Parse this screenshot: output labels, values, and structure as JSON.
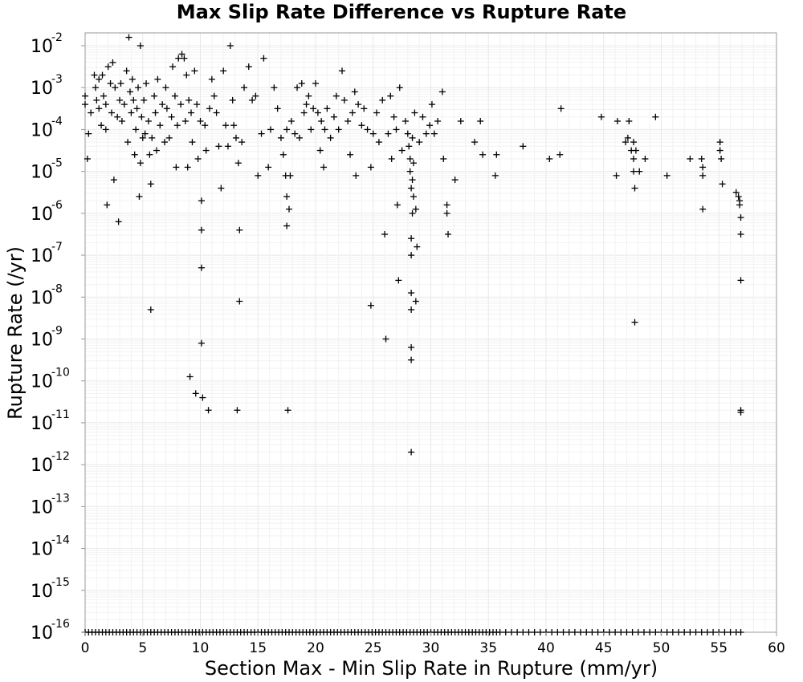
{
  "chart_data": {
    "type": "scatter",
    "title": "Max Slip Rate Difference vs Rupture Rate",
    "xlabel": "Section Max - Min Slip Rate in Rupture (mm/yr)",
    "ylabel": "Rupture Rate (/yr)",
    "xlim": [
      0,
      60
    ],
    "ylim_log10": [
      -16,
      -1.7
    ],
    "y_scale": "log",
    "grid": true,
    "legend": "none",
    "x_ticks": [
      "0",
      "5",
      "10",
      "15",
      "20",
      "25",
      "30",
      "35",
      "40",
      "45",
      "50",
      "55",
      "60"
    ],
    "y_ticks": [
      {
        "base": "10",
        "exp": "-2"
      },
      {
        "base": "10",
        "exp": "-3"
      },
      {
        "base": "10",
        "exp": "-4"
      },
      {
        "base": "10",
        "exp": "-5"
      },
      {
        "base": "10",
        "exp": "-6"
      },
      {
        "base": "10",
        "exp": "-7"
      },
      {
        "base": "10",
        "exp": "-8"
      },
      {
        "base": "10",
        "exp": "-9"
      },
      {
        "base": "10",
        "exp": "-10"
      },
      {
        "base": "10",
        "exp": "-11"
      },
      {
        "base": "10",
        "exp": "-12"
      },
      {
        "base": "10",
        "exp": "-13"
      },
      {
        "base": "10",
        "exp": "-14"
      },
      {
        "base": "10",
        "exp": "-15"
      },
      {
        "base": "10",
        "exp": "-16"
      }
    ],
    "marker": "plus",
    "point_color": "#000000",
    "points": [
      [
        0.0,
        -3.2
      ],
      [
        0.0,
        -3.4
      ],
      [
        0.2,
        -4.7
      ],
      [
        0.3,
        -4.1
      ],
      [
        0.5,
        -3.6
      ],
      [
        0.8,
        -2.7
      ],
      [
        0.9,
        -3.0
      ],
      [
        1.0,
        -3.3
      ],
      [
        1.2,
        -2.8
      ],
      [
        1.2,
        -3.5
      ],
      [
        1.4,
        -3.9
      ],
      [
        1.5,
        -2.7
      ],
      [
        1.6,
        -3.2
      ],
      [
        1.8,
        -4.0
      ],
      [
        1.8,
        -3.4
      ],
      [
        1.9,
        -5.8
      ],
      [
        2.0,
        -2.5
      ],
      [
        2.2,
        -2.9
      ],
      [
        2.3,
        -3.6
      ],
      [
        2.4,
        -2.4
      ],
      [
        2.5,
        -5.2
      ],
      [
        2.6,
        -3.0
      ],
      [
        2.8,
        -3.7
      ],
      [
        2.9,
        -6.2
      ],
      [
        3.0,
        -3.3
      ],
      [
        3.1,
        -2.9
      ],
      [
        3.2,
        -3.8
      ],
      [
        3.4,
        -3.4
      ],
      [
        3.6,
        -2.6
      ],
      [
        3.7,
        -4.3
      ],
      [
        3.8,
        -1.8
      ],
      [
        3.9,
        -3.1
      ],
      [
        4.0,
        -3.6
      ],
      [
        4.1,
        -2.8
      ],
      [
        4.2,
        -3.3
      ],
      [
        4.3,
        -4.6
      ],
      [
        4.4,
        -4.0
      ],
      [
        4.5,
        -3.5
      ],
      [
        4.6,
        -3.0
      ],
      [
        4.7,
        -5.6
      ],
      [
        4.8,
        -4.8
      ],
      [
        4.8,
        -2.0
      ],
      [
        4.9,
        -3.7
      ],
      [
        5.0,
        -4.2
      ],
      [
        5.1,
        -3.3
      ],
      [
        5.2,
        -4.1
      ],
      [
        5.3,
        -2.9
      ],
      [
        5.5,
        -3.8
      ],
      [
        5.6,
        -4.6
      ],
      [
        5.7,
        -5.3
      ],
      [
        5.7,
        -8.3
      ],
      [
        5.8,
        -4.2
      ],
      [
        6.0,
        -3.2
      ],
      [
        6.1,
        -3.6
      ],
      [
        6.2,
        -4.5
      ],
      [
        6.3,
        -2.8
      ],
      [
        6.5,
        -3.9
      ],
      [
        6.7,
        -3.4
      ],
      [
        6.9,
        -4.3
      ],
      [
        7.0,
        -3.0
      ],
      [
        7.1,
        -3.5
      ],
      [
        7.3,
        -4.2
      ],
      [
        7.5,
        -3.7
      ],
      [
        7.6,
        -2.5
      ],
      [
        7.8,
        -3.2
      ],
      [
        7.9,
        -4.9
      ],
      [
        8.0,
        -3.9
      ],
      [
        8.1,
        -2.3
      ],
      [
        8.3,
        -3.4
      ],
      [
        8.4,
        -2.2
      ],
      [
        8.6,
        -2.3
      ],
      [
        8.7,
        -3.8
      ],
      [
        8.8,
        -2.7
      ],
      [
        8.9,
        -4.9
      ],
      [
        9.0,
        -3.3
      ],
      [
        9.1,
        -9.9
      ],
      [
        9.2,
        -3.6
      ],
      [
        9.3,
        -4.3
      ],
      [
        9.5,
        -2.6
      ],
      [
        9.6,
        -10.3
      ],
      [
        9.7,
        -3.4
      ],
      [
        9.8,
        -4.7
      ],
      [
        10.0,
        -3.8
      ],
      [
        10.1,
        -5.7
      ],
      [
        10.1,
        -6.4
      ],
      [
        10.1,
        -7.3
      ],
      [
        10.1,
        -9.1
      ],
      [
        10.2,
        -10.4
      ],
      [
        10.4,
        -3.9
      ],
      [
        10.5,
        -4.5
      ],
      [
        10.7,
        -10.7
      ],
      [
        10.8,
        -3.5
      ],
      [
        11.0,
        -2.8
      ],
      [
        11.2,
        -3.2
      ],
      [
        11.4,
        -3.6
      ],
      [
        11.6,
        -4.4
      ],
      [
        11.8,
        -5.4
      ],
      [
        12.0,
        -2.6
      ],
      [
        12.2,
        -3.9
      ],
      [
        12.4,
        -4.4
      ],
      [
        12.6,
        -2.0
      ],
      [
        12.8,
        -3.3
      ],
      [
        12.9,
        -3.9
      ],
      [
        13.1,
        -4.2
      ],
      [
        13.2,
        -10.7
      ],
      [
        13.3,
        -4.8
      ],
      [
        13.4,
        -6.4
      ],
      [
        13.4,
        -8.1
      ],
      [
        13.6,
        -4.3
      ],
      [
        13.8,
        -3.0
      ],
      [
        14.2,
        -2.5
      ],
      [
        14.5,
        -3.3
      ],
      [
        14.8,
        -3.2
      ],
      [
        15.0,
        -5.1
      ],
      [
        15.3,
        -4.1
      ],
      [
        15.5,
        -2.3
      ],
      [
        15.9,
        -4.9
      ],
      [
        16.1,
        -4.0
      ],
      [
        16.4,
        -3.0
      ],
      [
        16.7,
        -3.5
      ],
      [
        17.0,
        -4.2
      ],
      [
        17.2,
        -4.6
      ],
      [
        17.4,
        -5.1
      ],
      [
        17.5,
        -4.0
      ],
      [
        17.5,
        -5.6
      ],
      [
        17.5,
        -6.3
      ],
      [
        17.6,
        -10.7
      ],
      [
        17.7,
        -5.9
      ],
      [
        17.8,
        -5.1
      ],
      [
        17.9,
        -3.8
      ],
      [
        18.2,
        -4.1
      ],
      [
        18.4,
        -3.0
      ],
      [
        18.6,
        -4.2
      ],
      [
        18.8,
        -2.9
      ],
      [
        19.0,
        -3.6
      ],
      [
        19.2,
        -3.4
      ],
      [
        19.4,
        -3.2
      ],
      [
        19.6,
        -4.0
      ],
      [
        19.8,
        -3.5
      ],
      [
        20.0,
        -2.9
      ],
      [
        20.2,
        -3.6
      ],
      [
        20.4,
        -4.5
      ],
      [
        20.5,
        -3.8
      ],
      [
        20.7,
        -4.9
      ],
      [
        20.8,
        -4.0
      ],
      [
        21.0,
        -3.5
      ],
      [
        21.3,
        -4.2
      ],
      [
        21.6,
        -3.7
      ],
      [
        21.8,
        -3.2
      ],
      [
        22.0,
        -4.0
      ],
      [
        22.3,
        -2.6
      ],
      [
        22.5,
        -3.3
      ],
      [
        22.8,
        -3.8
      ],
      [
        23.0,
        -4.6
      ],
      [
        23.2,
        -3.6
      ],
      [
        23.4,
        -3.1
      ],
      [
        23.5,
        -5.1
      ],
      [
        23.7,
        -3.4
      ],
      [
        24.0,
        -3.9
      ],
      [
        24.2,
        -3.5
      ],
      [
        24.5,
        -4.0
      ],
      [
        24.8,
        -4.9
      ],
      [
        24.8,
        -8.2
      ],
      [
        25.0,
        -4.1
      ],
      [
        25.3,
        -3.6
      ],
      [
        25.5,
        -4.3
      ],
      [
        25.8,
        -3.3
      ],
      [
        26.0,
        -6.5
      ],
      [
        26.1,
        -9.0
      ],
      [
        26.3,
        -4.1
      ],
      [
        26.5,
        -3.2
      ],
      [
        26.6,
        -4.7
      ],
      [
        26.8,
        -3.7
      ],
      [
        27.0,
        -4.0
      ],
      [
        27.1,
        -5.8
      ],
      [
        27.2,
        -7.6
      ],
      [
        27.3,
        -3.0
      ],
      [
        27.5,
        -4.5
      ],
      [
        27.8,
        -3.8
      ],
      [
        28.0,
        -4.1
      ],
      [
        28.1,
        -4.4
      ],
      [
        28.2,
        -4.7
      ],
      [
        28.2,
        -5.0
      ],
      [
        28.3,
        -5.4
      ],
      [
        28.3,
        -6.6
      ],
      [
        28.3,
        -7.0
      ],
      [
        28.3,
        -7.9
      ],
      [
        28.3,
        -8.3
      ],
      [
        28.3,
        -9.2
      ],
      [
        28.3,
        -9.5
      ],
      [
        28.3,
        -11.7
      ],
      [
        28.4,
        -4.2
      ],
      [
        28.4,
        -5.2
      ],
      [
        28.4,
        -6.0
      ],
      [
        28.5,
        -4.8
      ],
      [
        28.5,
        -5.6
      ],
      [
        28.6,
        -3.6
      ],
      [
        28.7,
        -5.9
      ],
      [
        28.7,
        -8.1
      ],
      [
        28.8,
        -6.8
      ],
      [
        29.0,
        -4.3
      ],
      [
        29.3,
        -3.7
      ],
      [
        29.6,
        -4.1
      ],
      [
        29.9,
        -3.9
      ],
      [
        30.1,
        -3.4
      ],
      [
        30.3,
        -4.1
      ],
      [
        30.6,
        -3.8
      ],
      [
        31.0,
        -3.1
      ],
      [
        31.1,
        -4.7
      ],
      [
        31.4,
        -5.8
      ],
      [
        31.4,
        -6.0
      ],
      [
        31.5,
        -6.5
      ],
      [
        32.1,
        -5.2
      ],
      [
        32.6,
        -3.8
      ],
      [
        33.8,
        -4.3
      ],
      [
        34.3,
        -3.8
      ],
      [
        34.5,
        -4.6
      ],
      [
        35.6,
        -5.1
      ],
      [
        35.7,
        -4.6
      ],
      [
        38.0,
        -4.4
      ],
      [
        40.3,
        -4.7
      ],
      [
        41.2,
        -4.6
      ],
      [
        41.3,
        -3.5
      ],
      [
        44.8,
        -3.7
      ],
      [
        46.2,
        -3.8
      ],
      [
        46.1,
        -5.1
      ],
      [
        46.9,
        -4.3
      ],
      [
        47.1,
        -4.2
      ],
      [
        47.2,
        -3.8
      ],
      [
        47.4,
        -4.5
      ],
      [
        47.6,
        -4.3
      ],
      [
        47.6,
        -4.7
      ],
      [
        47.6,
        -5.0
      ],
      [
        47.7,
        -5.4
      ],
      [
        47.7,
        -8.6
      ],
      [
        47.8,
        -4.5
      ],
      [
        48.1,
        -5.0
      ],
      [
        48.6,
        -4.7
      ],
      [
        49.5,
        -3.7
      ],
      [
        50.5,
        -5.1
      ],
      [
        52.5,
        -4.7
      ],
      [
        53.5,
        -4.7
      ],
      [
        53.6,
        -5.1
      ],
      [
        53.6,
        -4.9
      ],
      [
        53.6,
        -5.9
      ],
      [
        55.1,
        -4.3
      ],
      [
        55.1,
        -4.5
      ],
      [
        55.2,
        -4.7
      ],
      [
        55.3,
        -5.3
      ],
      [
        56.5,
        -5.5
      ],
      [
        56.7,
        -5.6
      ],
      [
        56.8,
        -5.7
      ],
      [
        56.8,
        -5.8
      ],
      [
        56.9,
        -6.1
      ],
      [
        56.9,
        -6.5
      ],
      [
        56.9,
        -7.6
      ],
      [
        56.9,
        -10.7
      ],
      [
        56.9,
        -10.75
      ]
    ],
    "floor_points_x": [
      0.0,
      0.3,
      0.6,
      0.9,
      1.2,
      1.5,
      1.8,
      2.1,
      2.4,
      2.7,
      3.0,
      3.3,
      3.6,
      3.9,
      4.2,
      4.5,
      4.8,
      5.1,
      5.4,
      5.7,
      6.0,
      6.3,
      6.6,
      6.9,
      7.2,
      7.5,
      7.8,
      8.1,
      8.4,
      8.7,
      9.0,
      9.3,
      9.6,
      9.9,
      10.2,
      10.5,
      10.8,
      11.1,
      11.4,
      11.7,
      12.0,
      12.3,
      12.6,
      12.9,
      13.2,
      13.5,
      13.8,
      14.1,
      14.4,
      14.7,
      15.0,
      15.3,
      15.6,
      15.9,
      16.2,
      16.5,
      16.8,
      17.1,
      17.4,
      17.7,
      18.0,
      18.3,
      18.6,
      18.9,
      19.2,
      19.5,
      19.8,
      20.1,
      20.4,
      20.7,
      21.0,
      21.3,
      21.6,
      21.9,
      22.2,
      22.5,
      22.8,
      23.1,
      23.4,
      23.7,
      24.0,
      24.3,
      24.6,
      24.9,
      25.2,
      25.5,
      25.8,
      26.1,
      26.4,
      26.7,
      27.0,
      27.3,
      27.6,
      27.9,
      28.2,
      28.5,
      28.8,
      29.1,
      29.4,
      29.7,
      30.0,
      30.3,
      30.6,
      30.9,
      31.2,
      31.5,
      31.8,
      32.1,
      32.4,
      32.7,
      33.0,
      33.3,
      33.6,
      33.9,
      34.2,
      34.5,
      34.8,
      35.1,
      35.4,
      35.7,
      36.0,
      36.5,
      37.0,
      37.5,
      38.0,
      38.5,
      39.0,
      39.5,
      40.0,
      40.5,
      41.0,
      41.5,
      42.0,
      42.5,
      43.0,
      43.5,
      44.0,
      44.5,
      45.0,
      45.5,
      46.0,
      46.5,
      47.0,
      47.5,
      48.0,
      48.5,
      49.0,
      49.5,
      50.0,
      50.5,
      51.0,
      51.5,
      52.0,
      52.5,
      53.0,
      53.5,
      54.0,
      54.5,
      55.0,
      55.5,
      56.0,
      56.5,
      56.9
    ],
    "floor_value_log10": -16
  }
}
